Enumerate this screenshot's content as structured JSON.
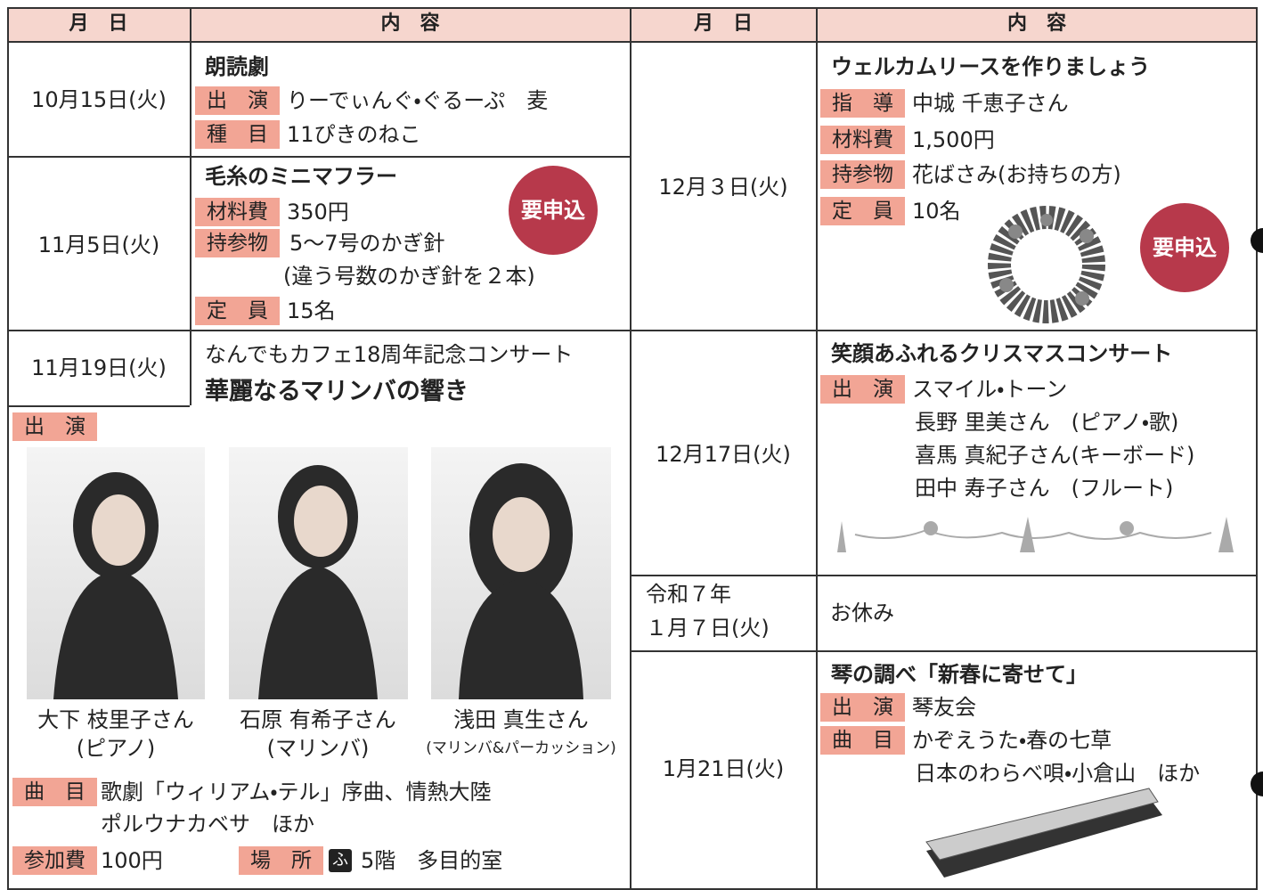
{
  "headers": [
    "月　日",
    "内　容",
    "月　日",
    "内　容"
  ],
  "events": [
    {
      "date": "10月15日(火)",
      "title": "朗読劇",
      "items": [
        {
          "label": "出　演",
          "text": "りーでぃんぐ・ぐるーぷ　麦"
        },
        {
          "label": "種　目",
          "text": "11ぴきのねこ"
        }
      ]
    },
    {
      "date": "11月5日(火)",
      "title": "毛糸のミニマフラー",
      "badge": "要申込",
      "items": [
        {
          "label": "材料費",
          "text": "350円"
        },
        {
          "label": "持参物",
          "text": "5〜7号のかぎ針",
          "text2": "(違う号数のかぎ針を２本)"
        },
        {
          "label": "定　員",
          "text": "15名"
        }
      ]
    },
    {
      "date": "11月19日(火)",
      "subtitle": "なんでもカフェ18周年記念コンサート",
      "title": "華麗なるマリンバの響き",
      "performers_label": "出　演",
      "performers": [
        {
          "name": "大下 枝里子さん",
          "role": "(ピアノ)"
        },
        {
          "name": "石原 有希子さん",
          "role": "(マリンバ)"
        },
        {
          "name": "浅田 真生さん",
          "role": "(マリンバ&パーカッション)"
        }
      ],
      "items": [
        {
          "label": "曲　目",
          "text": "歌劇「ウィリアム・テル」序曲、情熱大陸",
          "text2": "ポルウナカベサ　ほか"
        },
        {
          "label": "参加費",
          "text": "100円"
        },
        {
          "label": "場　所",
          "icon": "ふ",
          "text": "5階　多目的室"
        }
      ]
    },
    {
      "date": "12月３日(火)",
      "title": "ウェルカムリースを作りましょう",
      "badge": "要申込",
      "items": [
        {
          "label": "指　導",
          "text": "中城 千恵子さん"
        },
        {
          "label": "材料費",
          "text": "1,500円"
        },
        {
          "label": "持参物",
          "text": "花ばさみ(お持ちの方)"
        },
        {
          "label": "定　員",
          "text": "10名"
        }
      ]
    },
    {
      "date": "12月17日(火)",
      "title": "笑顔あふれるクリスマスコンサート",
      "items": [
        {
          "label": "出　演",
          "text": "スマイル・トーン",
          "more": [
            "長野 里美さん　(ピアノ・歌)",
            "喜馬 真紀子さん(キーボード)",
            "田中 寿子さん　(フルート)"
          ]
        }
      ]
    },
    {
      "date": [
        "令和７年",
        "１月７日(火)"
      ],
      "text": "お休み"
    },
    {
      "date": "1月21日(火)",
      "title": "琴の調べ「新春に寄せて」",
      "items": [
        {
          "label": "出　演",
          "text": "琴友会"
        },
        {
          "label": "曲　目",
          "text": "かぞえうた・春の七草",
          "text2": "日本のわらべ唄・小倉山　ほか"
        }
      ]
    }
  ]
}
